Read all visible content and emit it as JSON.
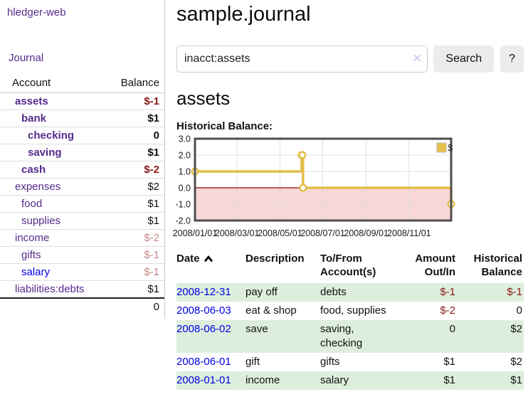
{
  "app": {
    "brand": "hledger-web"
  },
  "nav": {
    "journal": "Journal"
  },
  "sidebar": {
    "account_header": "Account",
    "balance_header": "Balance",
    "accounts": [
      {
        "name": "assets",
        "balance": "$-1"
      },
      {
        "name": "bank",
        "balance": "$1"
      },
      {
        "name": "checking",
        "balance": "0"
      },
      {
        "name": "saving",
        "balance": "$1"
      },
      {
        "name": "cash",
        "balance": "$-2"
      },
      {
        "name": "expenses",
        "balance": "$2"
      },
      {
        "name": "food",
        "balance": "$1"
      },
      {
        "name": "supplies",
        "balance": "$1"
      },
      {
        "name": "income",
        "balance": "$-2"
      },
      {
        "name": "gifts",
        "balance": "$-1"
      },
      {
        "name": "salary",
        "balance": "$-1"
      },
      {
        "name": "liabilities:debts",
        "balance": "$1"
      }
    ],
    "total": "0"
  },
  "header": {
    "title": "sample.journal"
  },
  "search": {
    "query": "inacct:assets",
    "clear_icon": "✕",
    "button": "Search",
    "help_button": "?"
  },
  "account_page": {
    "heading": "assets",
    "chart_label": "Historical Balance:"
  },
  "chart_data": {
    "type": "line",
    "title": "Historical Balance:",
    "step": true,
    "series": [
      {
        "name": "$",
        "points": [
          {
            "date": "2008-01-01",
            "day": 0,
            "value": 1
          },
          {
            "date": "2008-06-01",
            "day": 152,
            "value": 2
          },
          {
            "date": "2008-06-02",
            "day": 153,
            "value": 2
          },
          {
            "date": "2008-06-03",
            "day": 154,
            "value": 0
          },
          {
            "date": "2008-12-31",
            "day": 365,
            "value": -1
          }
        ]
      }
    ],
    "x_ticks": [
      {
        "label": "2008/01/01",
        "day": 0
      },
      {
        "label": "2008/03/01",
        "day": 60
      },
      {
        "label": "2008/05/01",
        "day": 121
      },
      {
        "label": "2008/07/01",
        "day": 182
      },
      {
        "label": "2008/09/01",
        "day": 244
      },
      {
        "label": "2008/11/01",
        "day": 305
      }
    ],
    "y_ticks": [
      3,
      2,
      1,
      0,
      -1,
      -2
    ],
    "ylim": [
      -2,
      3
    ],
    "xlim_days": [
      0,
      365
    ],
    "grid": true,
    "legend_position": "top-right",
    "colors": {
      "line": "#e3bd4a",
      "marker_fill": "#ffffff",
      "negative_region_fill": "#f8d7d7",
      "zero_line": "#8b0000",
      "border": "#4d4d4d",
      "grid": "#dcdcdc"
    },
    "legend": {
      "label": "$",
      "swatch_color": "#e8c14d"
    }
  },
  "register": {
    "columns": {
      "date": "Date",
      "description": "Description",
      "tofrom_line1": "To/From",
      "tofrom_line2": "Account(s)",
      "amount_line1": "Amount",
      "amount_line2": "Out/In",
      "balance_line1": "Historical",
      "balance_line2": "Balance"
    },
    "rows": [
      {
        "date": "2008-12-31",
        "description": "pay off",
        "accounts": "debts",
        "amount": "$-1",
        "balance": "$-1"
      },
      {
        "date": "2008-06-03",
        "description": "eat & shop",
        "accounts": "food, supplies",
        "amount": "$-2",
        "balance": "0"
      },
      {
        "date": "2008-06-02",
        "description": "save",
        "accounts": "saving,\nchecking",
        "amount": "0",
        "balance": "$2"
      },
      {
        "date": "2008-06-01",
        "description": "gift",
        "accounts": "gifts",
        "amount": "$1",
        "balance": "$2"
      },
      {
        "date": "2008-01-01",
        "description": "income",
        "accounts": "salary",
        "amount": "$1",
        "balance": "$1"
      }
    ]
  }
}
